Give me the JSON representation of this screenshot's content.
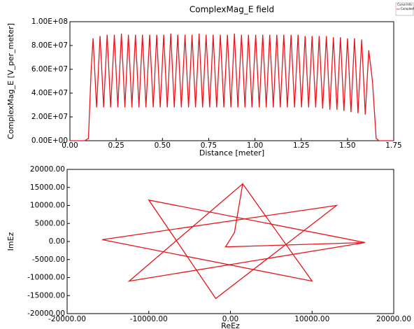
{
  "chart_data": [
    {
      "type": "line",
      "title": "ComplexMag_E field",
      "xlabel": "Distance [meter]",
      "ylabel": "ComplexMag_E [V_per_meter]",
      "legend_title": "Curve Info",
      "legend": "upper right",
      "x": [
        0,
        0.08,
        0.1,
        0.115,
        0.125,
        0.144,
        0.163,
        0.182,
        0.201,
        0.22,
        0.24,
        0.259,
        0.278,
        0.297,
        0.316,
        0.335,
        0.354,
        0.373,
        0.392,
        0.411,
        0.431,
        0.45,
        0.469,
        0.488,
        0.507,
        0.526,
        0.545,
        0.564,
        0.583,
        0.602,
        0.622,
        0.641,
        0.66,
        0.679,
        0.698,
        0.717,
        0.736,
        0.755,
        0.774,
        0.793,
        0.813,
        0.832,
        0.851,
        0.87,
        0.889,
        0.908,
        0.927,
        0.946,
        0.965,
        0.984,
        1.004,
        1.023,
        1.042,
        1.061,
        1.08,
        1.099,
        1.118,
        1.137,
        1.156,
        1.175,
        1.195,
        1.214,
        1.233,
        1.252,
        1.271,
        1.29,
        1.309,
        1.328,
        1.347,
        1.366,
        1.386,
        1.405,
        1.424,
        1.443,
        1.462,
        1.481,
        1.5,
        1.519,
        1.538,
        1.557,
        1.577,
        1.596,
        1.615,
        1.635,
        1.655,
        1.67,
        1.75
      ],
      "series": [
        {
          "name": "ComplexMag_E",
          "color": "#e8141c",
          "values": [
            0,
            0,
            2000000.0,
            60000000.0,
            86000000.0,
            28000000.0,
            88000000.0,
            28000000.0,
            89000000.0,
            28000000.0,
            89000000.0,
            28000000.0,
            90000000.0,
            28000000.0,
            89000000.0,
            28000000.0,
            89000000.0,
            28000000.0,
            89000000.0,
            28000000.0,
            89000000.0,
            28000000.0,
            89000000.0,
            28000000.0,
            89000000.0,
            28000000.0,
            90000000.0,
            28000000.0,
            89000000.0,
            28000000.0,
            89000000.0,
            28000000.0,
            89000000.0,
            28000000.0,
            90000000.0,
            28000000.0,
            89000000.0,
            28000000.0,
            89000000.0,
            28000000.0,
            89000000.0,
            28000000.0,
            89000000.0,
            28000000.0,
            90000000.0,
            28000000.0,
            89000000.0,
            28000000.0,
            89000000.0,
            28000000.0,
            89000000.0,
            28000000.0,
            89000000.0,
            28000000.0,
            89000000.0,
            28000000.0,
            89000000.0,
            28000000.0,
            89000000.0,
            28000000.0,
            89000000.0,
            28000000.0,
            89000000.0,
            28000000.0,
            88000000.0,
            28000000.0,
            88000000.0,
            28000000.0,
            88000000.0,
            27000000.0,
            88000000.0,
            26000000.0,
            87000000.0,
            26000000.0,
            87000000.0,
            25000000.0,
            86000000.0,
            24000000.0,
            86000000.0,
            23000000.0,
            85000000.0,
            22000000.0,
            76000000.0,
            50000000.0,
            2000000.0,
            0,
            0
          ]
        }
      ],
      "xlim": [
        0,
        1.75
      ],
      "ylim": [
        0,
        100000000.0
      ],
      "xticks": [
        {
          "value": 0,
          "label": "0.00"
        },
        {
          "value": 0.25,
          "label": "0.25"
        },
        {
          "value": 0.5,
          "label": "0.50"
        },
        {
          "value": 0.75,
          "label": "0.75"
        },
        {
          "value": 1,
          "label": "1.00"
        },
        {
          "value": 1.25,
          "label": "1.25"
        },
        {
          "value": 1.5,
          "label": "1.50"
        },
        {
          "value": 1.75,
          "label": "1.75"
        }
      ],
      "yticks": [
        {
          "value": 0,
          "label": "0.00E+00"
        },
        {
          "value": 20000000.0,
          "label": "2.00E+07"
        },
        {
          "value": 40000000.0,
          "label": "4.00E+07"
        },
        {
          "value": 60000000.0,
          "label": "6.00E+07"
        },
        {
          "value": 80000000.0,
          "label": "8.00E+07"
        },
        {
          "value": 100000000.0,
          "label": "1.00E+08"
        }
      ]
    },
    {
      "type": "line",
      "xlabel": "ReEz",
      "ylabel": "ImEz",
      "x": [
        1500,
        10000,
        -15700,
        13000,
        -1800,
        -10000,
        16500,
        -12400,
        1500,
        500,
        -600,
        16500
      ],
      "series": [
        {
          "color": "#e8141c",
          "values": [
            16000,
            -11000,
            500,
            10000,
            -15800,
            11500,
            -300,
            -11000,
            16000,
            2500,
            -1500,
            -300
          ]
        }
      ],
      "xlim": [
        -20000,
        20000
      ],
      "ylim": [
        -20000,
        20000
      ],
      "xticks": [
        {
          "value": -20000,
          "label": "-20000.00"
        },
        {
          "value": -10000,
          "label": "-10000.00"
        },
        {
          "value": 0,
          "label": "0.00"
        },
        {
          "value": 10000,
          "label": "10000.00"
        },
        {
          "value": 20000,
          "label": "20000.00"
        }
      ],
      "yticks": [
        {
          "value": -20000,
          "label": "-20000.00"
        },
        {
          "value": -15000,
          "label": "-15000.00"
        },
        {
          "value": -10000,
          "label": "-10000.00"
        },
        {
          "value": -5000,
          "label": "-5000.00"
        },
        {
          "value": 0,
          "label": "0.00"
        },
        {
          "value": 5000,
          "label": "5000.00"
        },
        {
          "value": 10000,
          "label": "10000.00"
        },
        {
          "value": 15000,
          "label": "15000.00"
        },
        {
          "value": 20000,
          "label": "20000.00"
        }
      ]
    }
  ]
}
